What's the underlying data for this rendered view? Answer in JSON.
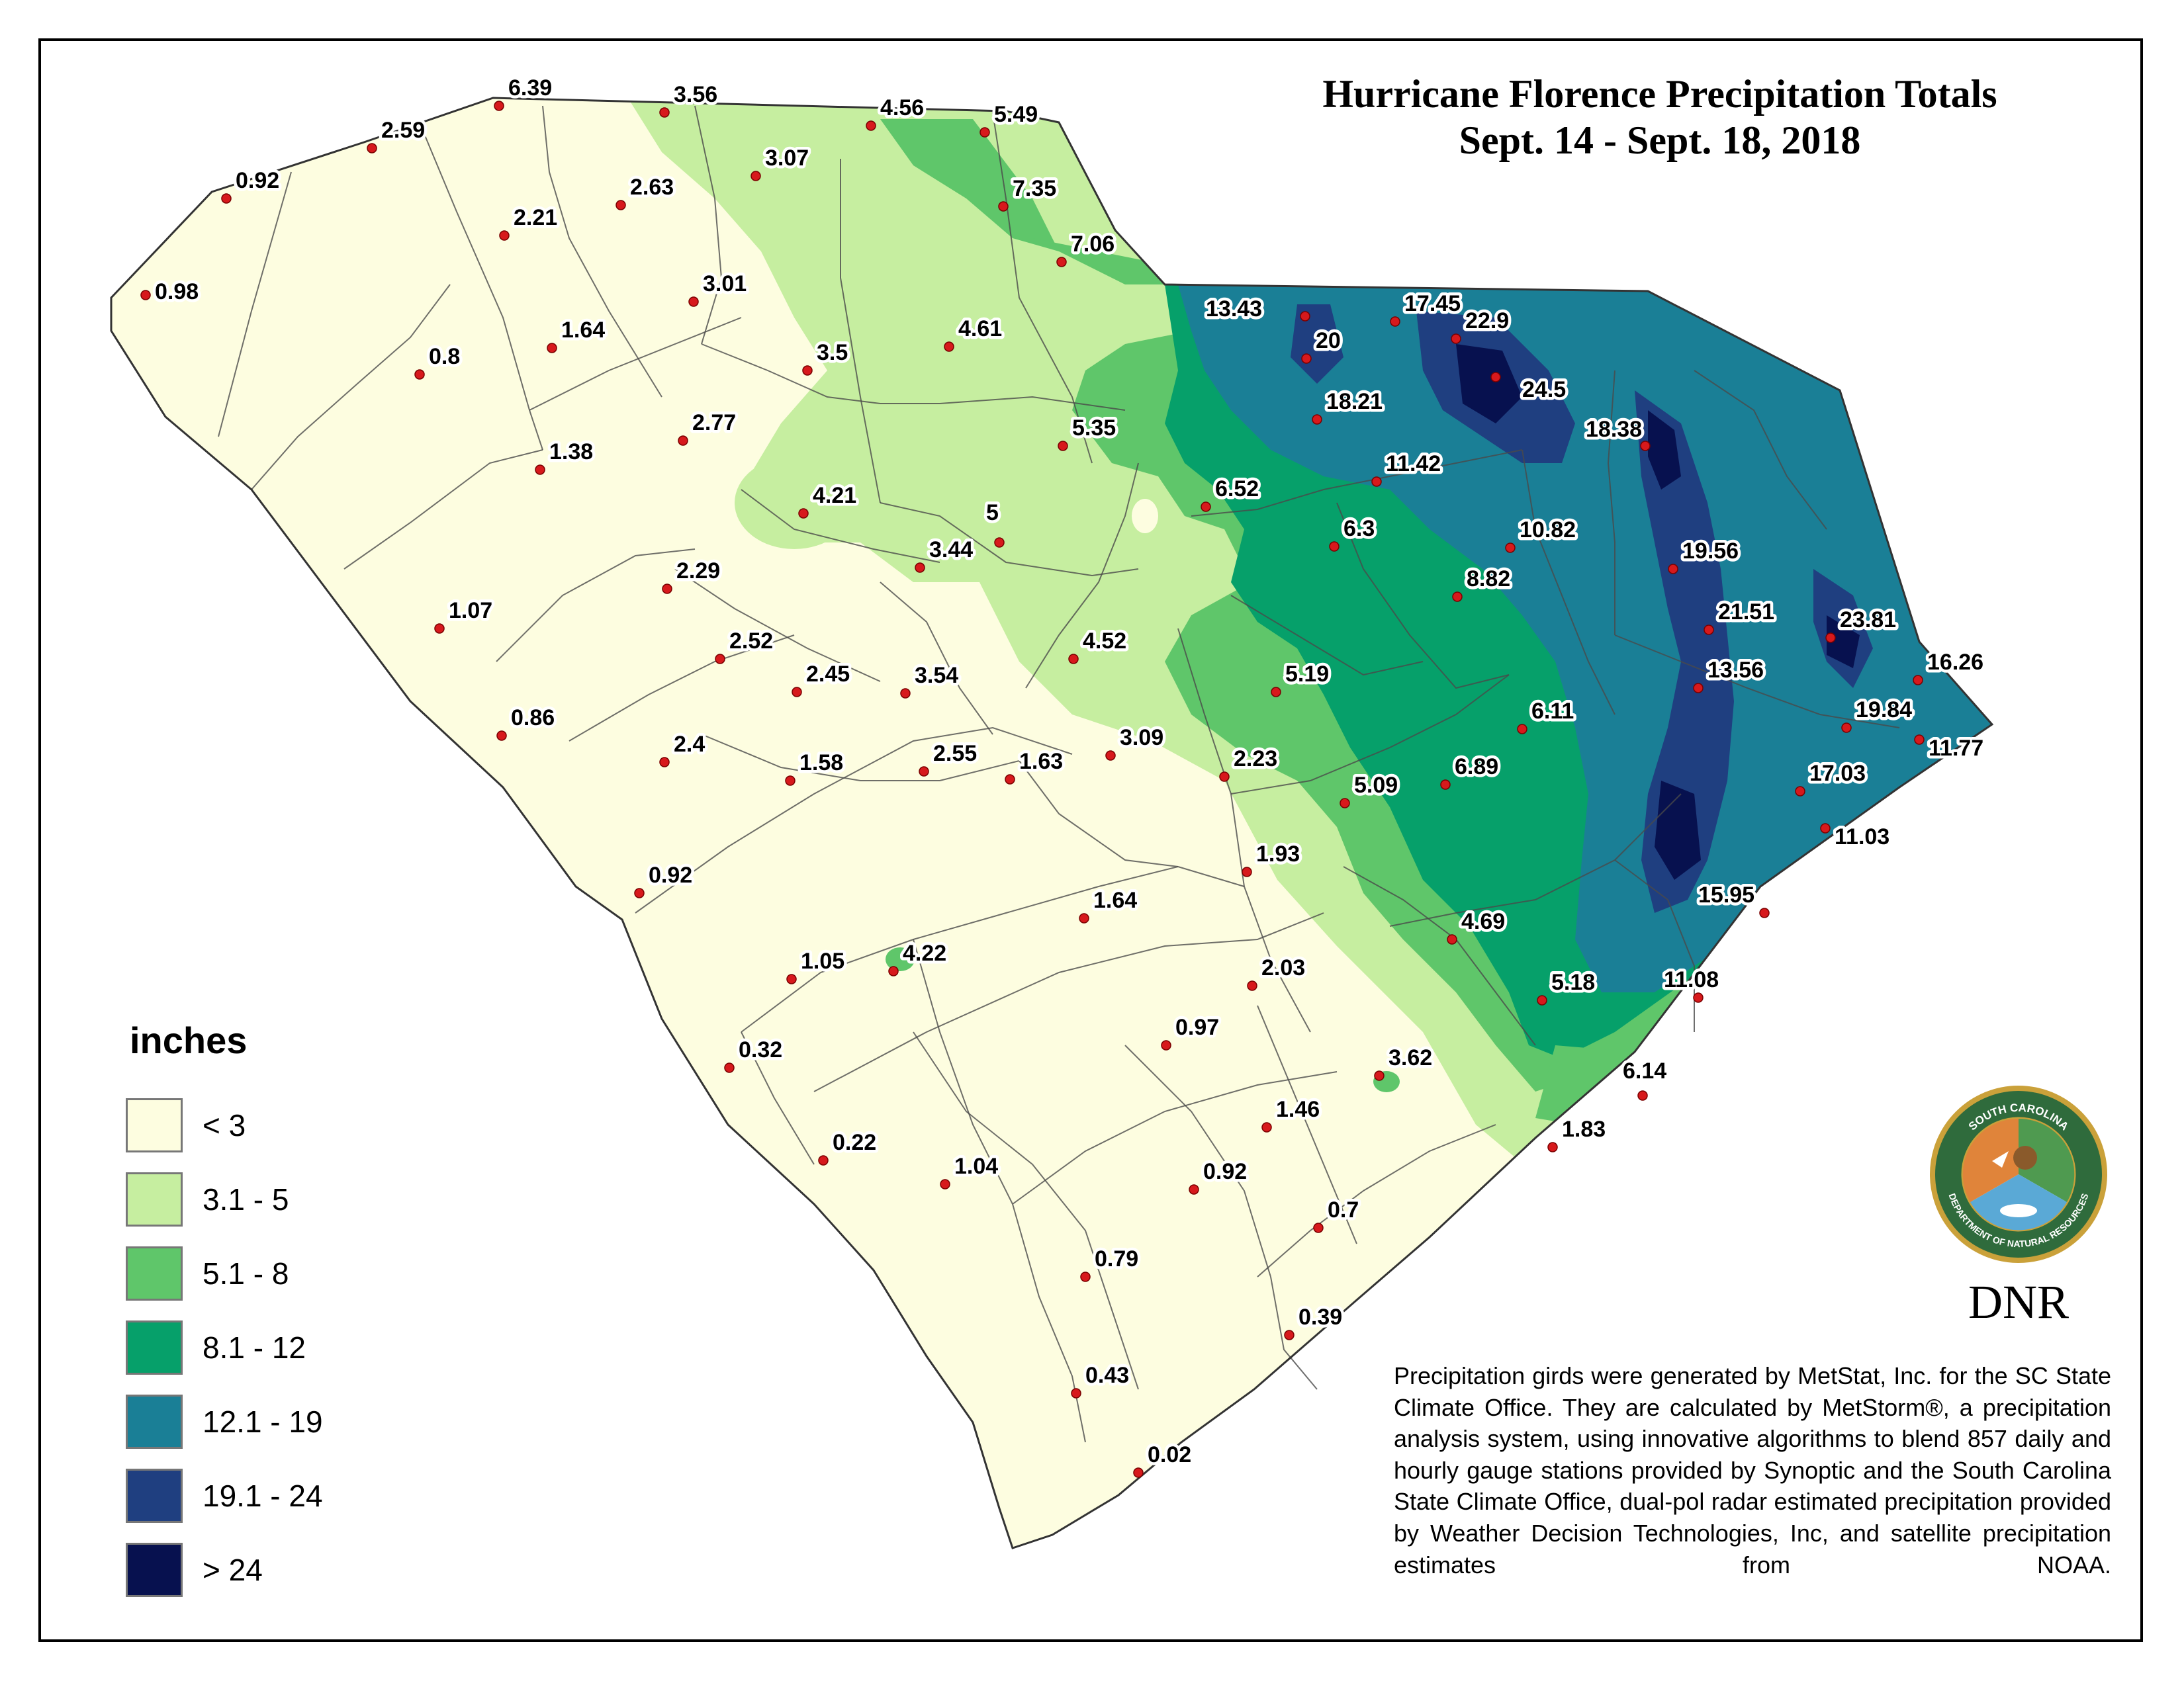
{
  "title": {
    "line1": "Hurricane Florence Precipitation Totals",
    "line2": "Sept. 14 - Sept. 18, 2018"
  },
  "legend": {
    "title": "inches",
    "classes": [
      {
        "label": "< 3",
        "color": "#fdfde0"
      },
      {
        "label": "3.1 - 5",
        "color": "#c6eea0"
      },
      {
        "label": "5.1 - 8",
        "color": "#5fc66a"
      },
      {
        "label": "8.1 - 12",
        "color": "#06a06a"
      },
      {
        "label": "12.1 - 19",
        "color": "#1a7f96"
      },
      {
        "label": "19.1 - 24",
        "color": "#1f3f80"
      },
      {
        "label": "> 24",
        "color": "#07114f"
      }
    ]
  },
  "stations": [
    {
      "value": "6.39"
    },
    {
      "value": "3.56"
    },
    {
      "value": "5.49"
    },
    {
      "value": "2.59"
    },
    {
      "value": "3.07"
    },
    {
      "value": "4.56"
    },
    {
      "value": "0.92"
    },
    {
      "value": "2.63"
    },
    {
      "value": "7.35"
    },
    {
      "value": "2.21"
    },
    {
      "value": "7.06"
    },
    {
      "value": "0.98"
    },
    {
      "value": "3.01"
    },
    {
      "value": "13.43"
    },
    {
      "value": "17.45"
    },
    {
      "value": "22.9"
    },
    {
      "value": "1.64"
    },
    {
      "value": "4.61"
    },
    {
      "value": "20"
    },
    {
      "value": "3.5"
    },
    {
      "value": "0.8"
    },
    {
      "value": "24.5"
    },
    {
      "value": "18.21"
    },
    {
      "value": "2.77"
    },
    {
      "value": "18.38"
    },
    {
      "value": "5.35"
    },
    {
      "value": "1.38"
    },
    {
      "value": "11.42"
    },
    {
      "value": "6.52"
    },
    {
      "value": "4.21"
    },
    {
      "value": "5"
    },
    {
      "value": "6.3"
    },
    {
      "value": "10.82"
    },
    {
      "value": "3.44"
    },
    {
      "value": "19.56"
    },
    {
      "value": "2.29"
    },
    {
      "value": "8.82"
    },
    {
      "value": "1.07"
    },
    {
      "value": "21.51"
    },
    {
      "value": "23.81"
    },
    {
      "value": "4.52"
    },
    {
      "value": "2.52"
    },
    {
      "value": "3.54"
    },
    {
      "value": "5.19"
    },
    {
      "value": "2.45"
    },
    {
      "value": "13.56"
    },
    {
      "value": "16.26"
    },
    {
      "value": "0.86"
    },
    {
      "value": "6.11"
    },
    {
      "value": "19.84"
    },
    {
      "value": "2.4"
    },
    {
      "value": "3.09"
    },
    {
      "value": "1.58"
    },
    {
      "value": "2.55"
    },
    {
      "value": "1.63"
    },
    {
      "value": "2.23"
    },
    {
      "value": "6.89"
    },
    {
      "value": "17.03"
    },
    {
      "value": "11.77"
    },
    {
      "value": "5.09"
    },
    {
      "value": "0.92"
    },
    {
      "value": "1.93"
    },
    {
      "value": "11.03"
    },
    {
      "value": "1.64"
    },
    {
      "value": "15.95"
    },
    {
      "value": "4.69"
    },
    {
      "value": "4.22"
    },
    {
      "value": "1.05"
    },
    {
      "value": "2.03"
    },
    {
      "value": "5.18"
    },
    {
      "value": "11.08"
    },
    {
      "value": "0.97"
    },
    {
      "value": "0.32"
    },
    {
      "value": "3.62"
    },
    {
      "value": "6.14"
    },
    {
      "value": "1.46"
    },
    {
      "value": "1.83"
    },
    {
      "value": "0.22"
    },
    {
      "value": "1.04"
    },
    {
      "value": "0.92"
    },
    {
      "value": "0.7"
    },
    {
      "value": "0.79"
    },
    {
      "value": "0.39"
    },
    {
      "value": "0.43"
    },
    {
      "value": "0.02"
    }
  ],
  "credit": "Precipitation girds were generated by MetStat, Inc. for the SC State Climate Office.  They are calculated by MetStorm®, a precipitation analysis system, using innovative algorithms to blend 857 daily and hourly gauge stations provided by Synoptic and the South Carolina State Climate Office, dual-pol radar estimated precipitation provided by Weather Decision Technologies, Inc, and satellite precipitation estimates from NOAA.",
  "logo": {
    "ring_text_top": "SOUTH CAROLINA",
    "ring_text_bottom": "DEPARTMENT OF NATURAL RESOURCES",
    "wordmark": "DNR"
  }
}
